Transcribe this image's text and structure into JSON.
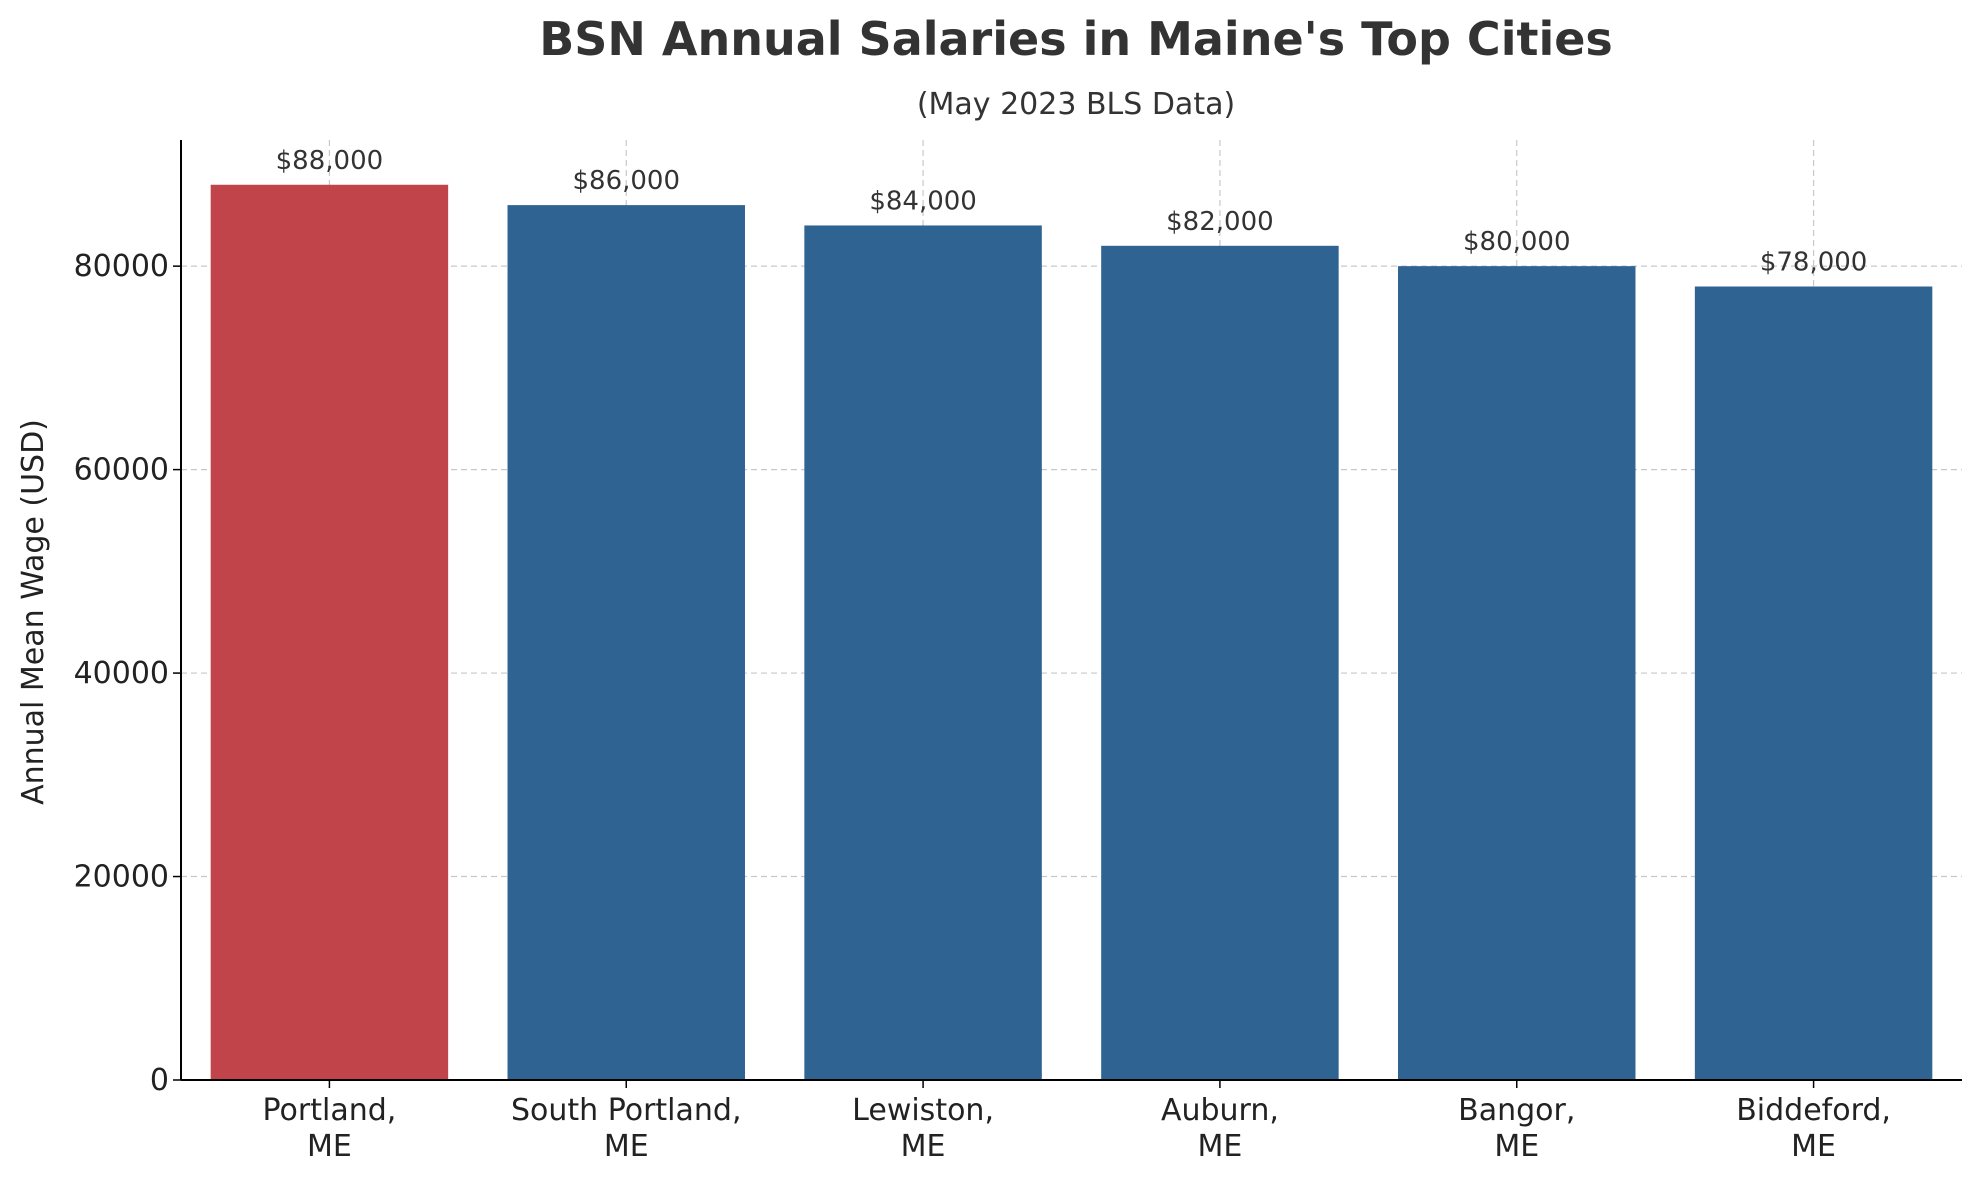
{
  "chart_data": {
    "type": "bar",
    "title": "BSN Annual Salaries in Maine's Top Cities",
    "subtitle": "(May 2023 BLS Data)",
    "xlabel": "",
    "ylabel": "Annual Mean Wage (USD)",
    "categories": [
      [
        "Portland,",
        "ME"
      ],
      [
        "South Portland,",
        "ME"
      ],
      [
        "Lewiston,",
        "ME"
      ],
      [
        "Auburn,",
        "ME"
      ],
      [
        "Bangor,",
        "ME"
      ],
      [
        "Biddeford,",
        "ME"
      ]
    ],
    "values": [
      88000,
      86000,
      84000,
      82000,
      80000,
      78000
    ],
    "data_labels": [
      "$88,000",
      "$86,000",
      "$84,000",
      "$82,000",
      "$80,000",
      "$78,000"
    ],
    "ylim": [
      0,
      92400
    ],
    "yticks": [
      0,
      20000,
      40000,
      60000,
      80000
    ],
    "ytick_labels": [
      "0",
      "20000",
      "40000",
      "60000",
      "80000"
    ],
    "grid": true,
    "colors": {
      "highlight": "#c0444a",
      "default": "#2f6392",
      "grid": "#c8c8c8",
      "axis": "#000000"
    },
    "highlight_index": 0
  }
}
